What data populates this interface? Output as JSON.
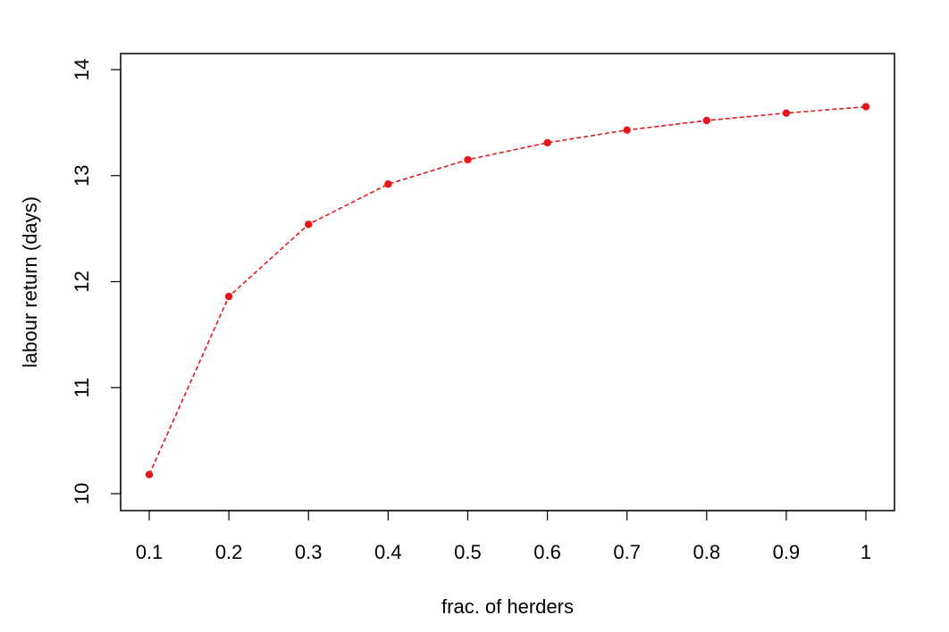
{
  "chart_data": {
    "type": "line",
    "title": "",
    "xlabel": "frac. of herders",
    "ylabel": "labour return (days)",
    "xlim": [
      0.1,
      1.0
    ],
    "ylim": [
      10,
      14
    ],
    "x_ticks": [
      0.1,
      0.2,
      0.3,
      0.4,
      0.5,
      0.6,
      0.7,
      0.8,
      0.9,
      1.0
    ],
    "x_tick_labels": [
      "0.1",
      "0.2",
      "0.3",
      "0.4",
      "0.5",
      "0.6",
      "0.7",
      "0.8",
      "0.9",
      "1"
    ],
    "y_ticks": [
      10,
      11,
      12,
      13,
      14
    ],
    "y_tick_labels": [
      "10",
      "11",
      "12",
      "13",
      "14"
    ],
    "grid": false,
    "legend": "none",
    "series": [
      {
        "color": "#e8151b",
        "line_style": "dashed",
        "marker": "filled-circle",
        "x": [
          0.1,
          0.2,
          0.3,
          0.4,
          0.5,
          0.6,
          0.7,
          0.8,
          0.9,
          1.0
        ],
        "y": [
          10.18,
          11.86,
          12.54,
          12.92,
          13.15,
          13.31,
          13.43,
          13.52,
          13.59,
          13.65
        ]
      }
    ]
  }
}
